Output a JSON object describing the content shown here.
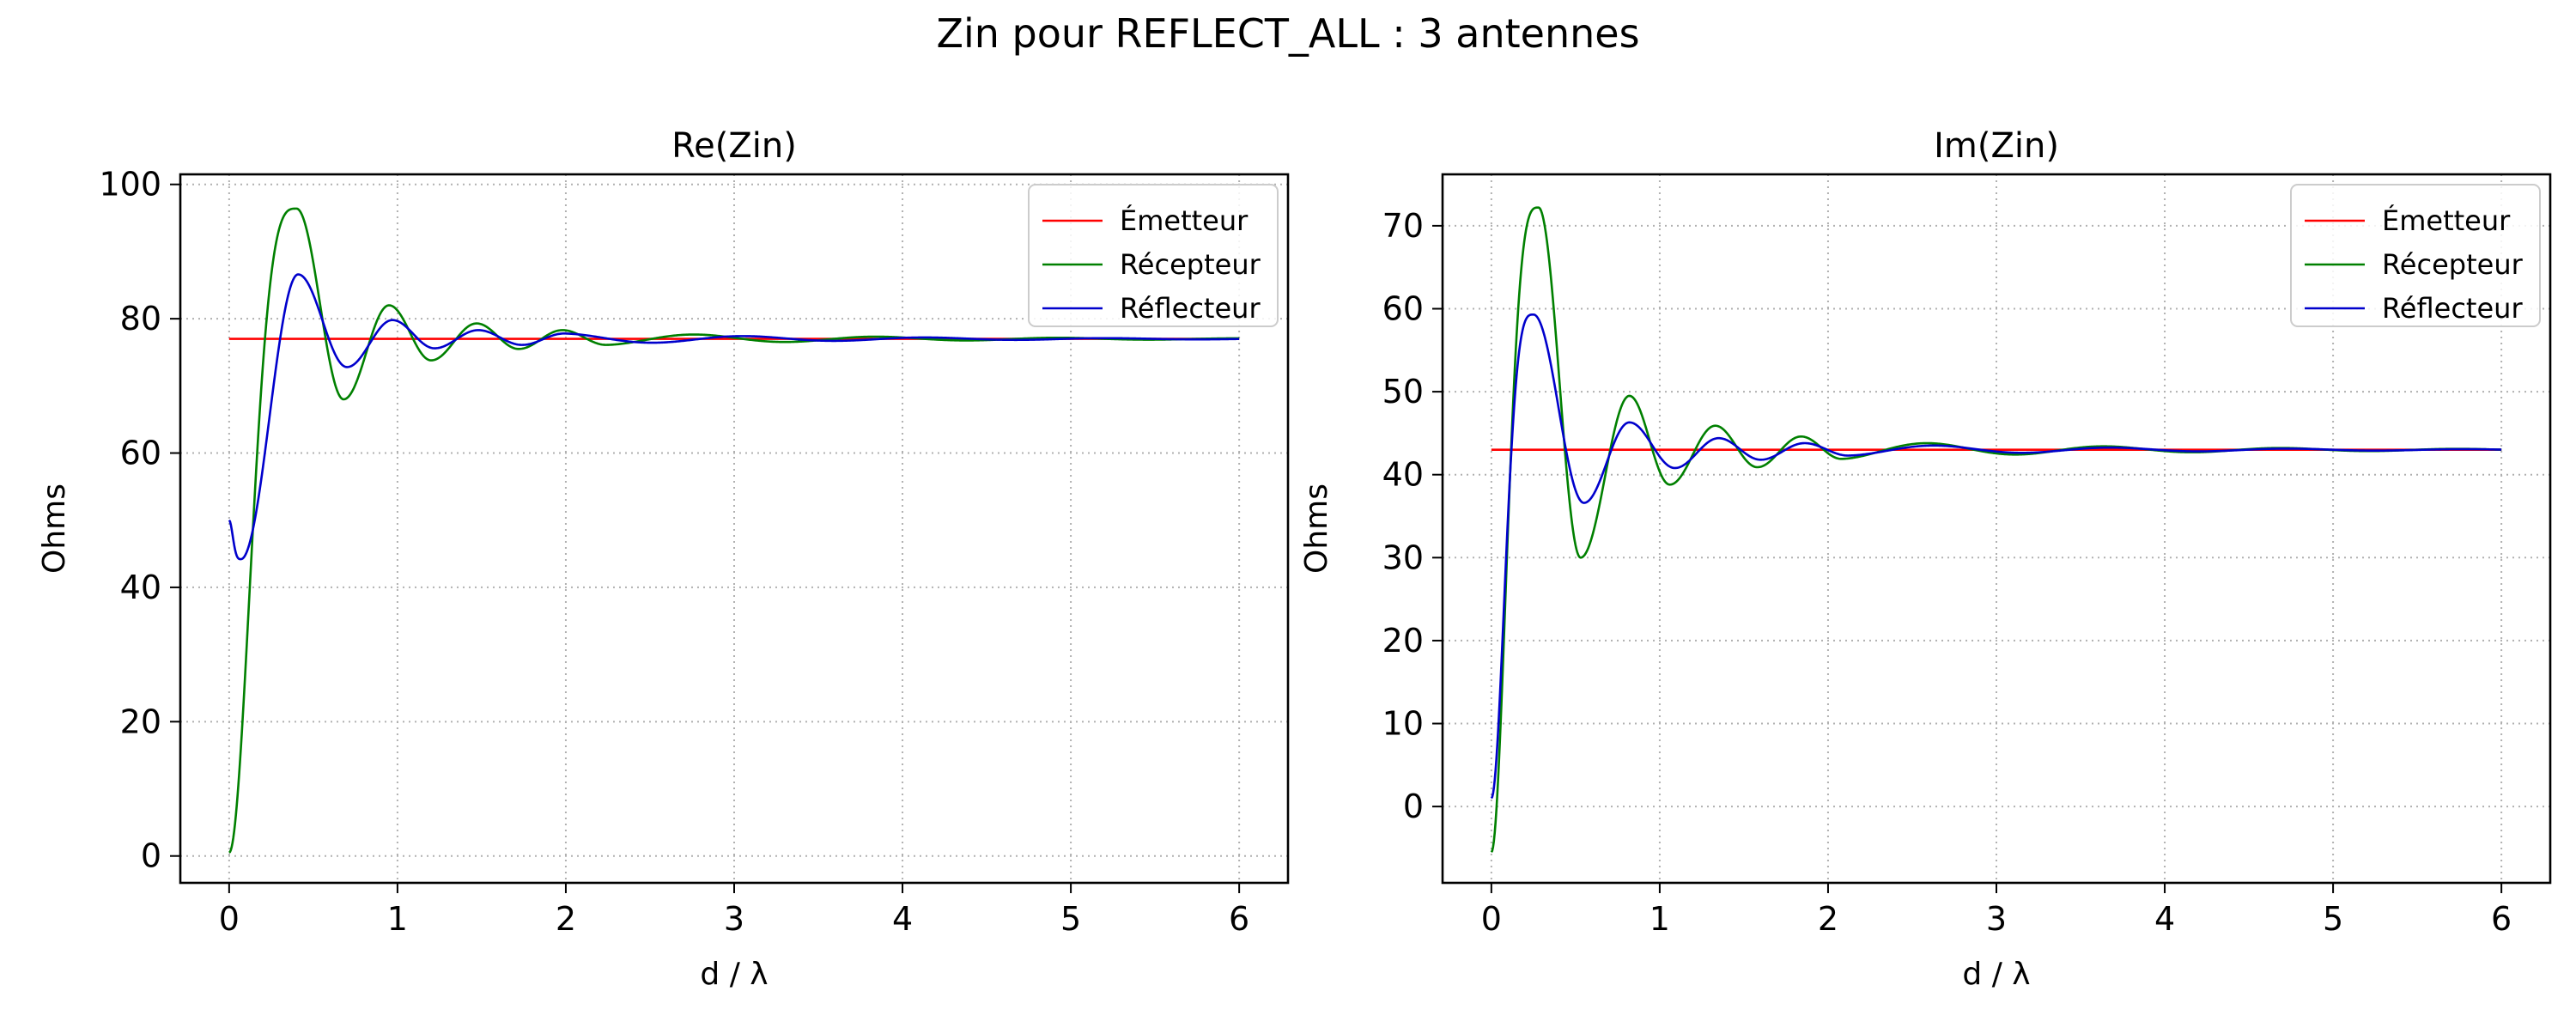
{
  "figure": {
    "title": "Zin pour REFLECT_ALL : 3 antennes"
  },
  "chart_data": [
    {
      "type": "line",
      "title": "Re(Zin)",
      "xlabel": "d / λ",
      "ylabel": "Ohms",
      "xlim": [
        -0.29,
        6.29
      ],
      "ylim": [
        -4.0,
        101.5
      ],
      "xticks": [
        0,
        1,
        2,
        3,
        4,
        5,
        6
      ],
      "yticks": [
        0,
        20,
        40,
        60,
        80,
        100
      ],
      "grid": true,
      "legend_position": "top-right",
      "series": [
        {
          "name": "Émetteur",
          "color": "#ff0000",
          "kind": "constant",
          "value": 77.0
        },
        {
          "name": "Récepteur",
          "color": "#008000",
          "kind": "damped",
          "base": 77.0,
          "period": 1.08,
          "decay": 0.62,
          "x_start": 0.0,
          "y_start": 0.5,
          "extrema": [
            [
              0.4,
              96.4
            ],
            [
              0.68,
              68.0
            ],
            [
              0.95,
              82.0
            ],
            [
              1.2,
              73.8
            ],
            [
              1.47,
              79.3
            ],
            [
              1.72,
              75.5
            ],
            [
              1.98,
              78.3
            ],
            [
              2.24,
              76.1
            ]
          ]
        },
        {
          "name": "Réflecteur",
          "color": "#0000cc",
          "kind": "damped",
          "base": 77.0,
          "period": 1.08,
          "decay": 0.62,
          "x_start": 0.0,
          "y_start": 50.0,
          "extrema": [
            [
              0.07,
              44.2
            ],
            [
              0.41,
              86.6
            ],
            [
              0.7,
              72.8
            ],
            [
              0.97,
              79.8
            ],
            [
              1.22,
              75.6
            ],
            [
              1.48,
              78.3
            ],
            [
              1.74,
              76.1
            ],
            [
              1.99,
              77.8
            ]
          ]
        }
      ]
    },
    {
      "type": "line",
      "title": "Im(Zin)",
      "xlabel": "d / λ",
      "ylabel": "Ohms",
      "xlim": [
        -0.29,
        6.29
      ],
      "ylim": [
        -9.2,
        76.2
      ],
      "xticks": [
        0,
        1,
        2,
        3,
        4,
        5,
        6
      ],
      "yticks": [
        0,
        10,
        20,
        30,
        40,
        50,
        60,
        70
      ],
      "grid": true,
      "legend_position": "top-right",
      "series": [
        {
          "name": "Émetteur",
          "color": "#ff0000",
          "kind": "constant",
          "value": 43.0
        },
        {
          "name": "Récepteur",
          "color": "#008000",
          "kind": "damped",
          "base": 43.0,
          "period": 1.05,
          "decay": 0.62,
          "x_start": 0.0,
          "y_start": -5.5,
          "extrema": [
            [
              0.28,
              72.2
            ],
            [
              0.53,
              30.0
            ],
            [
              0.82,
              49.5
            ],
            [
              1.06,
              38.8
            ],
            [
              1.33,
              45.9
            ],
            [
              1.58,
              40.9
            ],
            [
              1.84,
              44.6
            ],
            [
              2.08,
              41.9
            ]
          ]
        },
        {
          "name": "Réflecteur",
          "color": "#0000cc",
          "kind": "damped",
          "base": 43.0,
          "period": 1.05,
          "decay": 0.62,
          "x_start": 0.0,
          "y_start": 1.0,
          "extrema": [
            [
              0.25,
              59.3
            ],
            [
              0.55,
              36.6
            ],
            [
              0.82,
              46.3
            ],
            [
              1.09,
              40.8
            ],
            [
              1.35,
              44.4
            ],
            [
              1.6,
              41.8
            ],
            [
              1.86,
              43.8
            ],
            [
              2.12,
              42.3
            ]
          ]
        }
      ]
    }
  ]
}
